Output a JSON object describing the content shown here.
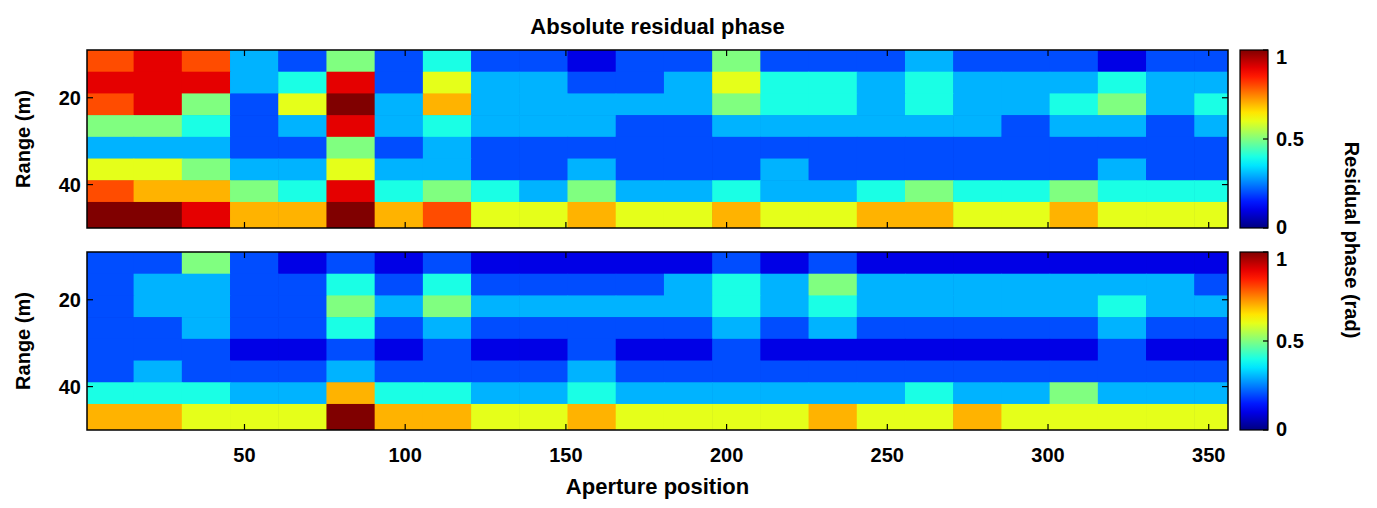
{
  "chart_data": [
    {
      "type": "heatmap",
      "title": "Absolute residual phase",
      "y_label": "Range (m)",
      "x": [
        8,
        23,
        38,
        53,
        68,
        83,
        98,
        113,
        128,
        143,
        158,
        173,
        188,
        203,
        218,
        233,
        248,
        263,
        278,
        293,
        308,
        323,
        338,
        353
      ],
      "y": [
        11.5,
        16.5,
        21.5,
        26.5,
        31.5,
        36.5,
        41.5,
        46.5
      ],
      "values": [
        [
          0.8,
          0.9,
          0.8,
          0.3,
          0.2,
          0.5,
          0.2,
          0.4,
          0.2,
          0.2,
          0.1,
          0.2,
          0.2,
          0.5,
          0.2,
          0.2,
          0.2,
          0.3,
          0.2,
          0.2,
          0.2,
          0.1,
          0.2,
          0.2
        ],
        [
          0.9,
          0.9,
          0.9,
          0.3,
          0.4,
          0.9,
          0.2,
          0.6,
          0.3,
          0.3,
          0.2,
          0.2,
          0.3,
          0.6,
          0.4,
          0.4,
          0.3,
          0.4,
          0.3,
          0.3,
          0.3,
          0.4,
          0.3,
          0.3
        ],
        [
          0.8,
          0.9,
          0.5,
          0.2,
          0.6,
          1.0,
          0.3,
          0.7,
          0.3,
          0.3,
          0.3,
          0.3,
          0.3,
          0.5,
          0.4,
          0.4,
          0.3,
          0.4,
          0.3,
          0.3,
          0.4,
          0.5,
          0.3,
          0.4
        ],
        [
          0.5,
          0.5,
          0.4,
          0.2,
          0.3,
          0.9,
          0.3,
          0.4,
          0.3,
          0.3,
          0.3,
          0.2,
          0.2,
          0.3,
          0.3,
          0.3,
          0.3,
          0.3,
          0.3,
          0.2,
          0.3,
          0.3,
          0.2,
          0.3
        ],
        [
          0.3,
          0.3,
          0.3,
          0.2,
          0.2,
          0.5,
          0.2,
          0.3,
          0.2,
          0.2,
          0.2,
          0.2,
          0.2,
          0.2,
          0.2,
          0.2,
          0.2,
          0.2,
          0.2,
          0.2,
          0.2,
          0.2,
          0.2,
          0.2
        ],
        [
          0.6,
          0.6,
          0.5,
          0.3,
          0.3,
          0.6,
          0.3,
          0.3,
          0.2,
          0.2,
          0.3,
          0.2,
          0.2,
          0.2,
          0.3,
          0.2,
          0.2,
          0.2,
          0.2,
          0.2,
          0.2,
          0.3,
          0.2,
          0.2
        ],
        [
          0.8,
          0.7,
          0.7,
          0.5,
          0.4,
          0.9,
          0.4,
          0.5,
          0.4,
          0.3,
          0.5,
          0.3,
          0.3,
          0.4,
          0.3,
          0.3,
          0.4,
          0.5,
          0.4,
          0.4,
          0.5,
          0.4,
          0.4,
          0.4
        ],
        [
          1.0,
          1.0,
          0.9,
          0.7,
          0.7,
          1.0,
          0.7,
          0.8,
          0.6,
          0.6,
          0.7,
          0.6,
          0.6,
          0.7,
          0.6,
          0.6,
          0.7,
          0.7,
          0.6,
          0.6,
          0.7,
          0.6,
          0.6,
          0.6
        ]
      ],
      "xlim": [
        1,
        356
      ],
      "ylim": [
        9,
        50
      ],
      "xticks": [
        50,
        100,
        150,
        200,
        250,
        300,
        350
      ],
      "yticks": [
        20,
        40
      ],
      "tick_labels": "y",
      "colorbar": {
        "range": [
          0,
          1
        ],
        "ticks": [
          0,
          0.5,
          1
        ],
        "label": "Residual phase (rad)"
      }
    },
    {
      "type": "heatmap",
      "y_label": "Range (m)",
      "x_label": "Aperture position",
      "x": [
        8,
        23,
        38,
        53,
        68,
        83,
        98,
        113,
        128,
        143,
        158,
        173,
        188,
        203,
        218,
        233,
        248,
        263,
        278,
        293,
        308,
        323,
        338,
        353
      ],
      "y": [
        11.5,
        16.5,
        21.5,
        26.5,
        31.5,
        36.5,
        41.5,
        46.5
      ],
      "values": [
        [
          0.2,
          0.2,
          0.5,
          0.2,
          0.1,
          0.2,
          0.1,
          0.2,
          0.1,
          0.1,
          0.1,
          0.1,
          0.1,
          0.2,
          0.1,
          0.2,
          0.1,
          0.1,
          0.1,
          0.1,
          0.1,
          0.1,
          0.1,
          0.1
        ],
        [
          0.2,
          0.3,
          0.3,
          0.2,
          0.2,
          0.4,
          0.2,
          0.4,
          0.2,
          0.2,
          0.2,
          0.2,
          0.3,
          0.4,
          0.3,
          0.5,
          0.3,
          0.3,
          0.3,
          0.3,
          0.3,
          0.3,
          0.3,
          0.2
        ],
        [
          0.2,
          0.3,
          0.3,
          0.2,
          0.2,
          0.5,
          0.3,
          0.5,
          0.3,
          0.3,
          0.3,
          0.3,
          0.3,
          0.4,
          0.3,
          0.4,
          0.3,
          0.3,
          0.3,
          0.3,
          0.3,
          0.4,
          0.3,
          0.3
        ],
        [
          0.2,
          0.2,
          0.3,
          0.2,
          0.2,
          0.4,
          0.2,
          0.3,
          0.2,
          0.2,
          0.2,
          0.2,
          0.2,
          0.3,
          0.2,
          0.3,
          0.2,
          0.2,
          0.2,
          0.2,
          0.2,
          0.3,
          0.2,
          0.2
        ],
        [
          0.2,
          0.2,
          0.2,
          0.1,
          0.1,
          0.2,
          0.1,
          0.2,
          0.1,
          0.1,
          0.2,
          0.1,
          0.1,
          0.2,
          0.1,
          0.1,
          0.1,
          0.1,
          0.1,
          0.1,
          0.1,
          0.2,
          0.1,
          0.1
        ],
        [
          0.2,
          0.3,
          0.2,
          0.2,
          0.2,
          0.3,
          0.2,
          0.2,
          0.2,
          0.2,
          0.3,
          0.2,
          0.2,
          0.2,
          0.2,
          0.2,
          0.2,
          0.2,
          0.2,
          0.2,
          0.2,
          0.2,
          0.2,
          0.2
        ],
        [
          0.4,
          0.4,
          0.4,
          0.3,
          0.3,
          0.7,
          0.4,
          0.4,
          0.3,
          0.3,
          0.4,
          0.3,
          0.3,
          0.3,
          0.3,
          0.3,
          0.3,
          0.4,
          0.3,
          0.3,
          0.5,
          0.3,
          0.3,
          0.3
        ],
        [
          0.7,
          0.7,
          0.6,
          0.6,
          0.6,
          1.0,
          0.7,
          0.7,
          0.6,
          0.6,
          0.7,
          0.6,
          0.6,
          0.6,
          0.6,
          0.7,
          0.6,
          0.6,
          0.7,
          0.6,
          0.6,
          0.6,
          0.6,
          0.6
        ]
      ],
      "xlim": [
        1,
        356
      ],
      "ylim": [
        9,
        50
      ],
      "xticks": [
        50,
        100,
        150,
        200,
        250,
        300,
        350
      ],
      "yticks": [
        20,
        40
      ],
      "colorbar": {
        "range": [
          0,
          1
        ],
        "ticks": [
          0,
          0.5,
          1
        ]
      }
    }
  ]
}
